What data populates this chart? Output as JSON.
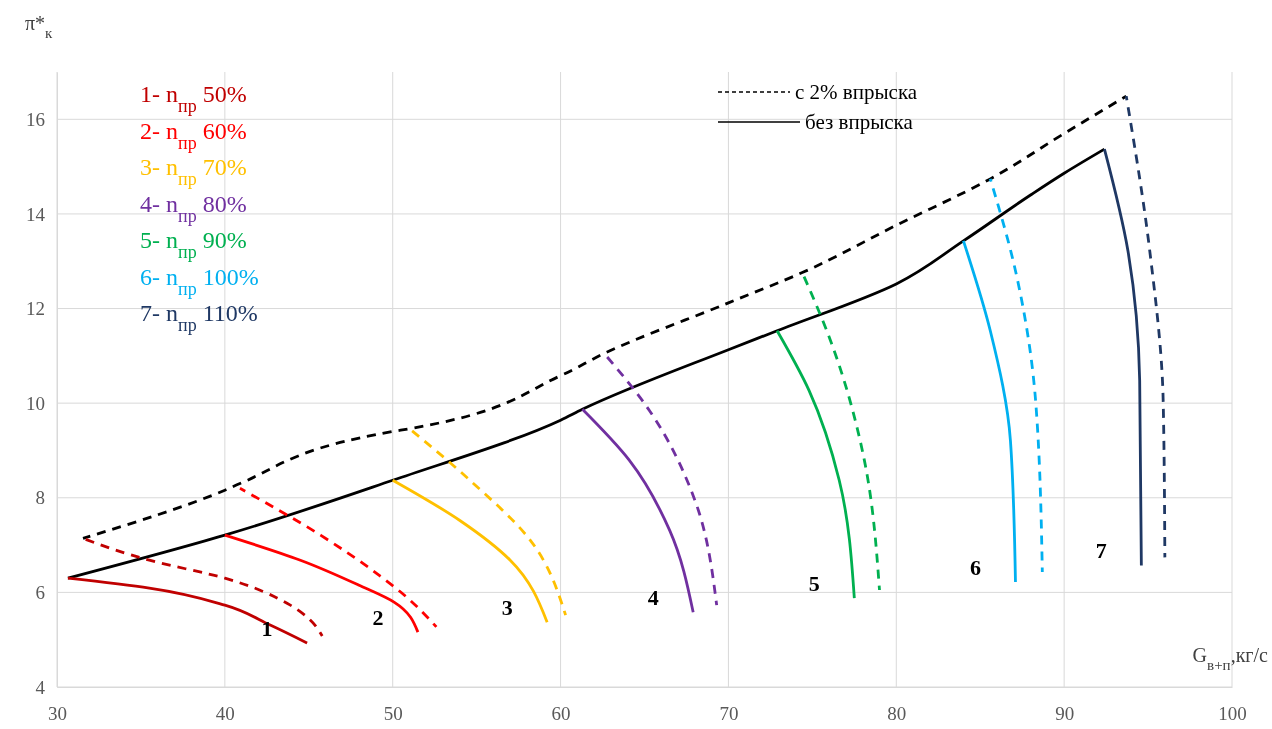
{
  "chart_data": {
    "type": "line",
    "xlabel": "G$_{в+п}$,кг/с",
    "ylabel": "π*$_{к}$",
    "xlim": [
      30,
      100
    ],
    "ylim": [
      4,
      17
    ],
    "xticks": [
      30,
      40,
      50,
      60,
      70,
      80,
      90,
      100
    ],
    "yticks": [
      4,
      6,
      8,
      10,
      12,
      14,
      16
    ],
    "grid": true,
    "legend": "top",
    "marker": "none",
    "series": [
      {
        "name": "с 2% впрыска",
        "color": "#000000",
        "line_style": "dashed",
        "x": [
          31.55,
          40,
          40.9,
          50,
          51,
          60,
          62.6,
          70,
          74.4,
          80,
          85.6,
          90,
          93.7
        ],
        "values": [
          7.14,
          8.16,
          8.3,
          9.4,
          9.46,
          10.58,
          11.05,
          12.12,
          12.76,
          13.76,
          14.74,
          15.7,
          16.49
        ]
      },
      {
        "name": "без впрыска",
        "color": "#000000",
        "line_style": "solid",
        "x": [
          30.65,
          40,
          50,
          60,
          61.3,
          70,
          72.9,
          80,
          84,
          88,
          90,
          92.4
        ],
        "values": [
          6.3,
          7.21,
          8.37,
          9.64,
          9.87,
          11.13,
          11.53,
          12.52,
          13.43,
          14.4,
          14.86,
          15.37
        ]
      },
      {
        "name": "1- n$_{пр}$ 50%",
        "color": "#c00000",
        "line_style": "solid",
        "x": [
          30.65,
          35.5,
          40,
          42.7,
          44.9
        ],
        "values": [
          6.3,
          6.09,
          5.73,
          5.31,
          4.93
        ]
      },
      {
        "color": "#c00000",
        "line_style": "dashed",
        "x": [
          31.55,
          35.5,
          40,
          43.9,
          45.1,
          45.8
        ],
        "values": [
          7.14,
          6.68,
          6.3,
          5.73,
          5.41,
          5.08
        ]
      },
      {
        "name": "2- n$_{пр}$ 60%",
        "color": "#ff0000",
        "line_style": "solid",
        "x": [
          40,
          44.5,
          48,
          50.1,
          51.5
        ],
        "values": [
          7.21,
          6.68,
          6.15,
          5.79,
          5.16
        ]
      },
      {
        "color": "#ff0000",
        "line_style": "dashed",
        "x": [
          40.9,
          45.7,
          49.2,
          50.7,
          52.6
        ],
        "values": [
          8.2,
          7.21,
          6.36,
          5.94,
          5.27
        ]
      },
      {
        "name": "3-  n$_{пр}$ 70%",
        "color": "#ffc000",
        "line_style": "solid",
        "x": [
          50,
          54,
          57,
          59.2
        ],
        "values": [
          8.37,
          7.52,
          6.68,
          5.37
        ]
      },
      {
        "color": "#ffc000",
        "line_style": "dashed",
        "x": [
          51,
          54.6,
          58.2,
          60.3
        ],
        "values": [
          9.46,
          8.37,
          7.1,
          5.52
        ]
      },
      {
        "name": "4-  n$_{пр}$ 80%",
        "color": "#7030a0",
        "line_style": "solid",
        "x": [
          61.3,
          64.1,
          66.5,
          67.9
        ],
        "values": [
          9.87,
          8.79,
          7.31,
          5.58
        ]
      },
      {
        "color": "#7030a0",
        "line_style": "dashed",
        "x": [
          62.6,
          65.3,
          68,
          69.3
        ],
        "values": [
          11.05,
          9.84,
          7.95,
          5.73
        ]
      },
      {
        "name": "5-  n$_{пр}$ 90%",
        "color": "#00b050",
        "line_style": "solid",
        "x": [
          72.9,
          74.8,
          76.6,
          77.5
        ],
        "values": [
          11.53,
          10.27,
          8.37,
          5.88
        ]
      },
      {
        "color": "#00b050",
        "line_style": "dashed",
        "x": [
          74.4,
          76.3,
          78.1,
          79
        ],
        "values": [
          12.76,
          11.11,
          8.79,
          6.05
        ]
      },
      {
        "name": "6-  n$_{пр}$ 100%",
        "color": "#00b0f0",
        "line_style": "solid",
        "x": [
          84,
          85.6,
          86.8,
          87.1
        ],
        "values": [
          13.43,
          11.53,
          9.21,
          6.22
        ]
      },
      {
        "color": "#00b0f0",
        "line_style": "dashed",
        "x": [
          85.6,
          87.1,
          88.3,
          88.7
        ],
        "values": [
          14.74,
          12.8,
          10.05,
          6.43
        ]
      },
      {
        "name": "7-  n$_{пр}$ 110%",
        "color": "#1f3864",
        "line_style": "solid",
        "x": [
          92.4,
          93.8,
          94.5,
          94.6
        ],
        "values": [
          15.37,
          13.22,
          10.48,
          6.57
        ]
      },
      {
        "color": "#1f3864",
        "line_style": "dashed",
        "x": [
          93.7,
          95.1,
          95.9,
          96
        ],
        "values": [
          16.49,
          13.22,
          10.05,
          6.74
        ]
      }
    ],
    "annotations": [
      "1",
      "2",
      "3",
      "4",
      "5",
      "6",
      "7"
    ]
  }
}
